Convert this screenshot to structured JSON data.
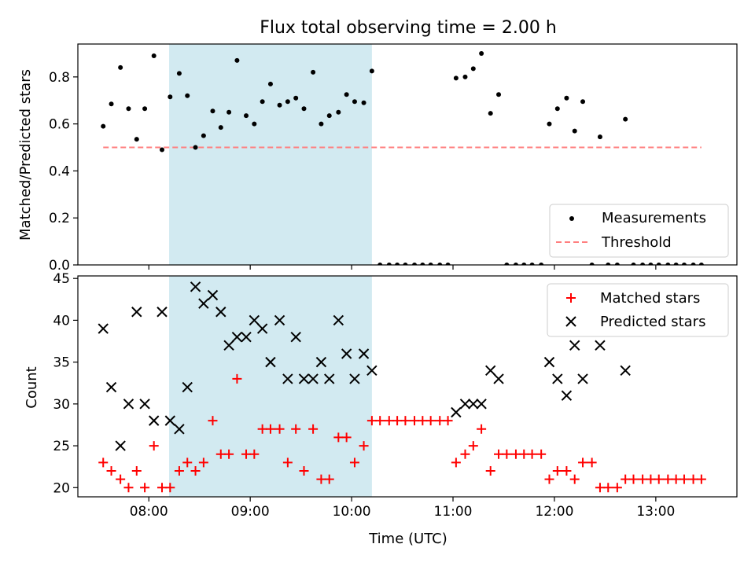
{
  "figure": {
    "title": "Flux total observing time = 2.00 h",
    "xlabel": "Time (UTC)",
    "x_ticks": [
      "08:00",
      "09:00",
      "10:00",
      "11:00",
      "12:00",
      "13:00"
    ],
    "x_tick_values": [
      8.0,
      9.0,
      10.0,
      11.0,
      12.0,
      13.0
    ],
    "xlim": [
      7.3,
      13.8
    ],
    "shaded_span": [
      8.2,
      10.2
    ],
    "colors": {
      "shade": "#add8e6",
      "measurements": "#000000",
      "threshold": "#ff7f7f",
      "matched": "#ff0000",
      "predicted": "#000000"
    }
  },
  "chart_data": [
    {
      "type": "scatter",
      "ylabel": "Matched/Predicted stars",
      "ylim": [
        0,
        0.94
      ],
      "y_ticks": [
        "0.0",
        "0.2",
        "0.4",
        "0.6",
        "0.8"
      ],
      "y_tick_values": [
        0.0,
        0.2,
        0.4,
        0.6,
        0.8
      ],
      "legend_position": "lower-right",
      "threshold": {
        "name": "Threshold",
        "y": 0.5,
        "x_range": [
          7.55,
          13.45
        ]
      },
      "series": [
        {
          "name": "Measurements",
          "x": [
            7.55,
            7.63,
            7.72,
            7.8,
            7.88,
            7.96,
            8.05,
            8.13,
            8.21,
            8.3,
            8.38,
            8.46,
            8.54,
            8.63,
            8.71,
            8.79,
            8.87,
            8.96,
            9.04,
            9.12,
            9.2,
            9.29,
            9.37,
            9.45,
            9.53,
            9.62,
            9.7,
            9.78,
            9.87,
            9.95,
            10.03,
            10.12,
            10.2,
            10.28,
            10.37,
            10.45,
            10.53,
            10.62,
            10.7,
            10.78,
            10.87,
            10.95,
            11.03,
            11.12,
            11.2,
            11.28,
            11.37,
            11.45,
            11.53,
            11.62,
            11.7,
            11.78,
            11.87,
            11.95,
            12.03,
            12.12,
            12.2,
            12.28,
            12.37,
            12.45,
            12.53,
            12.62,
            12.7,
            12.78,
            12.87,
            12.95,
            13.03,
            13.12,
            13.2,
            13.28,
            13.37,
            13.45
          ],
          "y": [
            0.59,
            0.685,
            0.84,
            0.665,
            0.535,
            0.665,
            0.89,
            0.49,
            0.715,
            0.815,
            0.72,
            0.5,
            0.55,
            0.655,
            0.585,
            0.65,
            0.87,
            0.635,
            0.6,
            0.695,
            0.77,
            0.68,
            0.695,
            0.71,
            0.665,
            0.82,
            0.6,
            0.635,
            0.65,
            0.725,
            0.695,
            0.69,
            0.825,
            0,
            0,
            0,
            0,
            0,
            0,
            0,
            0,
            0,
            0.795,
            0.8,
            0.835,
            0.9,
            0.645,
            0.725,
            0,
            0,
            0,
            0,
            0,
            0.6,
            0.665,
            0.71,
            0.57,
            0.695,
            0,
            0.545,
            0,
            0,
            0.62,
            0,
            0,
            0,
            0,
            0,
            0,
            0,
            0,
            0
          ]
        }
      ]
    },
    {
      "type": "scatter",
      "ylabel": "Count",
      "ylim": [
        18.9,
        45.3
      ],
      "y_ticks": [
        "20",
        "25",
        "30",
        "35",
        "40",
        "45"
      ],
      "y_tick_values": [
        20,
        25,
        30,
        35,
        40,
        45
      ],
      "legend_position": "upper-right",
      "series": [
        {
          "name": "Matched stars",
          "marker": "plus",
          "x": [
            7.55,
            7.63,
            7.72,
            7.8,
            7.88,
            7.96,
            8.05,
            8.13,
            8.21,
            8.3,
            8.38,
            8.46,
            8.54,
            8.63,
            8.71,
            8.79,
            8.87,
            8.96,
            9.04,
            9.12,
            9.2,
            9.29,
            9.37,
            9.45,
            9.53,
            9.62,
            9.7,
            9.78,
            9.87,
            9.95,
            10.03,
            10.12,
            10.2,
            10.28,
            10.37,
            10.45,
            10.53,
            10.62,
            10.7,
            10.78,
            10.87,
            10.95,
            11.03,
            11.12,
            11.2,
            11.28,
            11.37,
            11.45,
            11.53,
            11.62,
            11.7,
            11.78,
            11.87,
            11.95,
            12.03,
            12.12,
            12.2,
            12.28,
            12.37,
            12.45,
            12.53,
            12.62,
            12.7,
            12.78,
            12.87,
            12.95,
            13.03,
            13.12,
            13.2,
            13.28,
            13.37,
            13.45
          ],
          "y": [
            23,
            22,
            21,
            20,
            22,
            20,
            25,
            20,
            20,
            22,
            23,
            22,
            23,
            28,
            24,
            24,
            33,
            24,
            24,
            27,
            27,
            27,
            23,
            27,
            22,
            27,
            21,
            21,
            26,
            26,
            23,
            25,
            28,
            28,
            28,
            28,
            28,
            28,
            28,
            28,
            28,
            28,
            23,
            24,
            25,
            27,
            22,
            24,
            24,
            24,
            24,
            24,
            24,
            21,
            22,
            22,
            21,
            23,
            23,
            20,
            20,
            20,
            21,
            21,
            21,
            21,
            21,
            21,
            21,
            21,
            21,
            21
          ]
        },
        {
          "name": "Predicted stars",
          "marker": "x",
          "x": [
            7.55,
            7.63,
            7.72,
            7.8,
            7.88,
            7.96,
            8.05,
            8.13,
            8.21,
            8.3,
            8.38,
            8.46,
            8.54,
            8.63,
            8.71,
            8.79,
            8.87,
            8.96,
            9.04,
            9.12,
            9.2,
            9.29,
            9.37,
            9.45,
            9.53,
            9.62,
            9.7,
            9.78,
            9.87,
            9.95,
            10.03,
            10.12,
            10.2,
            11.03,
            11.12,
            11.2,
            11.28,
            11.37,
            11.45,
            11.95,
            12.03,
            12.12,
            12.2,
            12.28,
            12.45,
            12.7
          ],
          "y": [
            39,
            32,
            25,
            30,
            41,
            30,
            28,
            41,
            28,
            27,
            32,
            44,
            42,
            43,
            41,
            37,
            38,
            38,
            40,
            39,
            35,
            40,
            33,
            38,
            33,
            33,
            35,
            33,
            40,
            36,
            33,
            36,
            34,
            29,
            30,
            30,
            30,
            34,
            33,
            35,
            33,
            31,
            37,
            33,
            37,
            34
          ]
        }
      ]
    }
  ]
}
